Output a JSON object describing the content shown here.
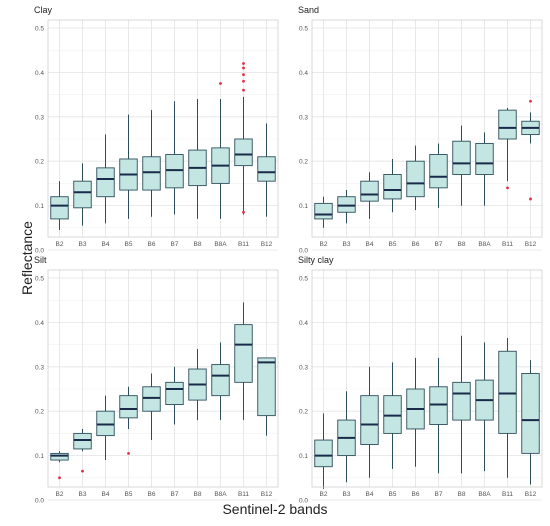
{
  "colors": {
    "box_fill": "#c4e6e3",
    "box_stroke": "#2c4e5c",
    "median": "#1a2a4a",
    "outlier": "#e03040",
    "grid_major": "#e3e3e3",
    "grid_minor": "#f1f1f1",
    "panel_border": "#cfcfcf"
  },
  "figure": {
    "ylabel": "Reflectance",
    "xlabel": "Sentinel-2 bands"
  },
  "chart_data": [
    {
      "type": "box",
      "title": "Clay",
      "categories": [
        "B2",
        "B3",
        "B4",
        "B5",
        "B6",
        "B7",
        "B8",
        "B8A",
        "B11",
        "B12"
      ],
      "yticks": [
        "0.0",
        "0.1",
        "0.2",
        "0.3",
        "0.4",
        "0.5"
      ],
      "ylim": [
        0,
        0.5
      ],
      "grid": true,
      "boxes": [
        {
          "band": "B2",
          "min": 0.045,
          "q1": 0.07,
          "median": 0.1,
          "q3": 0.12,
          "max": 0.155,
          "outliers": []
        },
        {
          "band": "B3",
          "min": 0.055,
          "q1": 0.095,
          "median": 0.13,
          "q3": 0.155,
          "max": 0.195,
          "outliers": []
        },
        {
          "band": "B4",
          "min": 0.06,
          "q1": 0.12,
          "median": 0.16,
          "q3": 0.185,
          "max": 0.26,
          "outliers": []
        },
        {
          "band": "B5",
          "min": 0.07,
          "q1": 0.135,
          "median": 0.17,
          "q3": 0.205,
          "max": 0.305,
          "outliers": []
        },
        {
          "band": "B6",
          "min": 0.075,
          "q1": 0.135,
          "median": 0.175,
          "q3": 0.21,
          "max": 0.315,
          "outliers": []
        },
        {
          "band": "B7",
          "min": 0.08,
          "q1": 0.14,
          "median": 0.18,
          "q3": 0.215,
          "max": 0.335,
          "outliers": []
        },
        {
          "band": "B8",
          "min": 0.07,
          "q1": 0.145,
          "median": 0.185,
          "q3": 0.225,
          "max": 0.34,
          "outliers": []
        },
        {
          "band": "B8A",
          "min": 0.07,
          "q1": 0.15,
          "median": 0.19,
          "q3": 0.23,
          "max": 0.34,
          "outliers": [
            0.375
          ]
        },
        {
          "band": "B11",
          "min": 0.08,
          "q1": 0.19,
          "median": 0.215,
          "q3": 0.25,
          "max": 0.345,
          "outliers": [
            0.36,
            0.38,
            0.395,
            0.41,
            0.42,
            0.085
          ]
        },
        {
          "band": "B12",
          "min": 0.075,
          "q1": 0.155,
          "median": 0.175,
          "q3": 0.21,
          "max": 0.285,
          "outliers": []
        }
      ]
    },
    {
      "type": "box",
      "title": "Sand",
      "categories": [
        "B2",
        "B3",
        "B4",
        "B5",
        "B6",
        "B7",
        "B8",
        "B8A",
        "B11",
        "B12"
      ],
      "yticks": [
        "0.0",
        "0.1",
        "0.2",
        "0.3",
        "0.4",
        "0.5"
      ],
      "ylim": [
        0,
        0.5
      ],
      "grid": true,
      "boxes": [
        {
          "band": "B2",
          "min": 0.05,
          "q1": 0.07,
          "median": 0.08,
          "q3": 0.105,
          "max": 0.12,
          "outliers": []
        },
        {
          "band": "B3",
          "min": 0.06,
          "q1": 0.085,
          "median": 0.1,
          "q3": 0.12,
          "max": 0.135,
          "outliers": []
        },
        {
          "band": "B4",
          "min": 0.07,
          "q1": 0.11,
          "median": 0.125,
          "q3": 0.155,
          "max": 0.175,
          "outliers": []
        },
        {
          "band": "B5",
          "min": 0.085,
          "q1": 0.115,
          "median": 0.135,
          "q3": 0.17,
          "max": 0.205,
          "outliers": []
        },
        {
          "band": "B6",
          "min": 0.09,
          "q1": 0.12,
          "median": 0.15,
          "q3": 0.2,
          "max": 0.235,
          "outliers": []
        },
        {
          "band": "B7",
          "min": 0.095,
          "q1": 0.14,
          "median": 0.165,
          "q3": 0.215,
          "max": 0.24,
          "outliers": []
        },
        {
          "band": "B8",
          "min": 0.1,
          "q1": 0.17,
          "median": 0.195,
          "q3": 0.245,
          "max": 0.28,
          "outliers": []
        },
        {
          "band": "B8A",
          "min": 0.1,
          "q1": 0.17,
          "median": 0.195,
          "q3": 0.24,
          "max": 0.265,
          "outliers": []
        },
        {
          "band": "B11",
          "min": 0.155,
          "q1": 0.25,
          "median": 0.275,
          "q3": 0.315,
          "max": 0.32,
          "outliers": [
            0.14
          ]
        },
        {
          "band": "B12",
          "min": 0.24,
          "q1": 0.26,
          "median": 0.275,
          "q3": 0.29,
          "max": 0.31,
          "outliers": [
            0.335,
            0.115
          ]
        }
      ]
    },
    {
      "type": "box",
      "title": "Silt",
      "categories": [
        "B2",
        "B3",
        "B4",
        "B5",
        "B6",
        "B7",
        "B8",
        "B8A",
        "B11",
        "B12"
      ],
      "yticks": [
        "0.0",
        "0.1",
        "0.2",
        "0.3",
        "0.4",
        "0.5"
      ],
      "ylim": [
        0,
        0.5
      ],
      "grid": true,
      "boxes": [
        {
          "band": "B2",
          "min": 0.085,
          "q1": 0.09,
          "median": 0.1,
          "q3": 0.105,
          "max": 0.11,
          "outliers": [
            0.05
          ]
        },
        {
          "band": "B3",
          "min": 0.11,
          "q1": 0.115,
          "median": 0.135,
          "q3": 0.15,
          "max": 0.16,
          "outliers": [
            0.065
          ]
        },
        {
          "band": "B4",
          "min": 0.09,
          "q1": 0.145,
          "median": 0.17,
          "q3": 0.2,
          "max": 0.235,
          "outliers": []
        },
        {
          "band": "B5",
          "min": 0.16,
          "q1": 0.185,
          "median": 0.205,
          "q3": 0.235,
          "max": 0.255,
          "outliers": [
            0.105
          ]
        },
        {
          "band": "B6",
          "min": 0.135,
          "q1": 0.2,
          "median": 0.23,
          "q3": 0.255,
          "max": 0.285,
          "outliers": []
        },
        {
          "band": "B7",
          "min": 0.17,
          "q1": 0.215,
          "median": 0.25,
          "q3": 0.265,
          "max": 0.3,
          "outliers": []
        },
        {
          "band": "B8",
          "min": 0.18,
          "q1": 0.225,
          "median": 0.26,
          "q3": 0.295,
          "max": 0.34,
          "outliers": []
        },
        {
          "band": "B8A",
          "min": 0.18,
          "q1": 0.235,
          "median": 0.28,
          "q3": 0.305,
          "max": 0.355,
          "outliers": []
        },
        {
          "band": "B11",
          "min": 0.18,
          "q1": 0.265,
          "median": 0.35,
          "q3": 0.395,
          "max": 0.445,
          "outliers": []
        },
        {
          "band": "B12",
          "min": 0.145,
          "q1": 0.19,
          "median": 0.31,
          "q3": 0.32,
          "max": 0.32,
          "outliers": []
        }
      ]
    },
    {
      "type": "box",
      "title": "Silty clay",
      "categories": [
        "B2",
        "B3",
        "B4",
        "B5",
        "B6",
        "B7",
        "B8",
        "B8A",
        "B11",
        "B12"
      ],
      "yticks": [
        "0.0",
        "0.1",
        "0.2",
        "0.3",
        "0.4",
        "0.5"
      ],
      "ylim": [
        0,
        0.5
      ],
      "grid": true,
      "boxes": [
        {
          "band": "B2",
          "min": 0.025,
          "q1": 0.075,
          "median": 0.1,
          "q3": 0.135,
          "max": 0.195,
          "outliers": []
        },
        {
          "band": "B3",
          "min": 0.04,
          "q1": 0.1,
          "median": 0.14,
          "q3": 0.18,
          "max": 0.245,
          "outliers": []
        },
        {
          "band": "B4",
          "min": 0.05,
          "q1": 0.125,
          "median": 0.17,
          "q3": 0.235,
          "max": 0.3,
          "outliers": []
        },
        {
          "band": "B5",
          "min": 0.07,
          "q1": 0.15,
          "median": 0.19,
          "q3": 0.235,
          "max": 0.31,
          "outliers": []
        },
        {
          "band": "B6",
          "min": 0.075,
          "q1": 0.16,
          "median": 0.205,
          "q3": 0.25,
          "max": 0.32,
          "outliers": []
        },
        {
          "band": "B7",
          "min": 0.06,
          "q1": 0.17,
          "median": 0.215,
          "q3": 0.255,
          "max": 0.32,
          "outliers": []
        },
        {
          "band": "B8",
          "min": 0.06,
          "q1": 0.18,
          "median": 0.24,
          "q3": 0.265,
          "max": 0.37,
          "outliers": []
        },
        {
          "band": "B8A",
          "min": 0.065,
          "q1": 0.18,
          "median": 0.225,
          "q3": 0.27,
          "max": 0.355,
          "outliers": []
        },
        {
          "band": "B11",
          "min": 0.05,
          "q1": 0.15,
          "median": 0.24,
          "q3": 0.335,
          "max": 0.365,
          "outliers": []
        },
        {
          "band": "B12",
          "min": 0.035,
          "q1": 0.105,
          "median": 0.18,
          "q3": 0.285,
          "max": 0.315,
          "outliers": []
        }
      ]
    }
  ]
}
